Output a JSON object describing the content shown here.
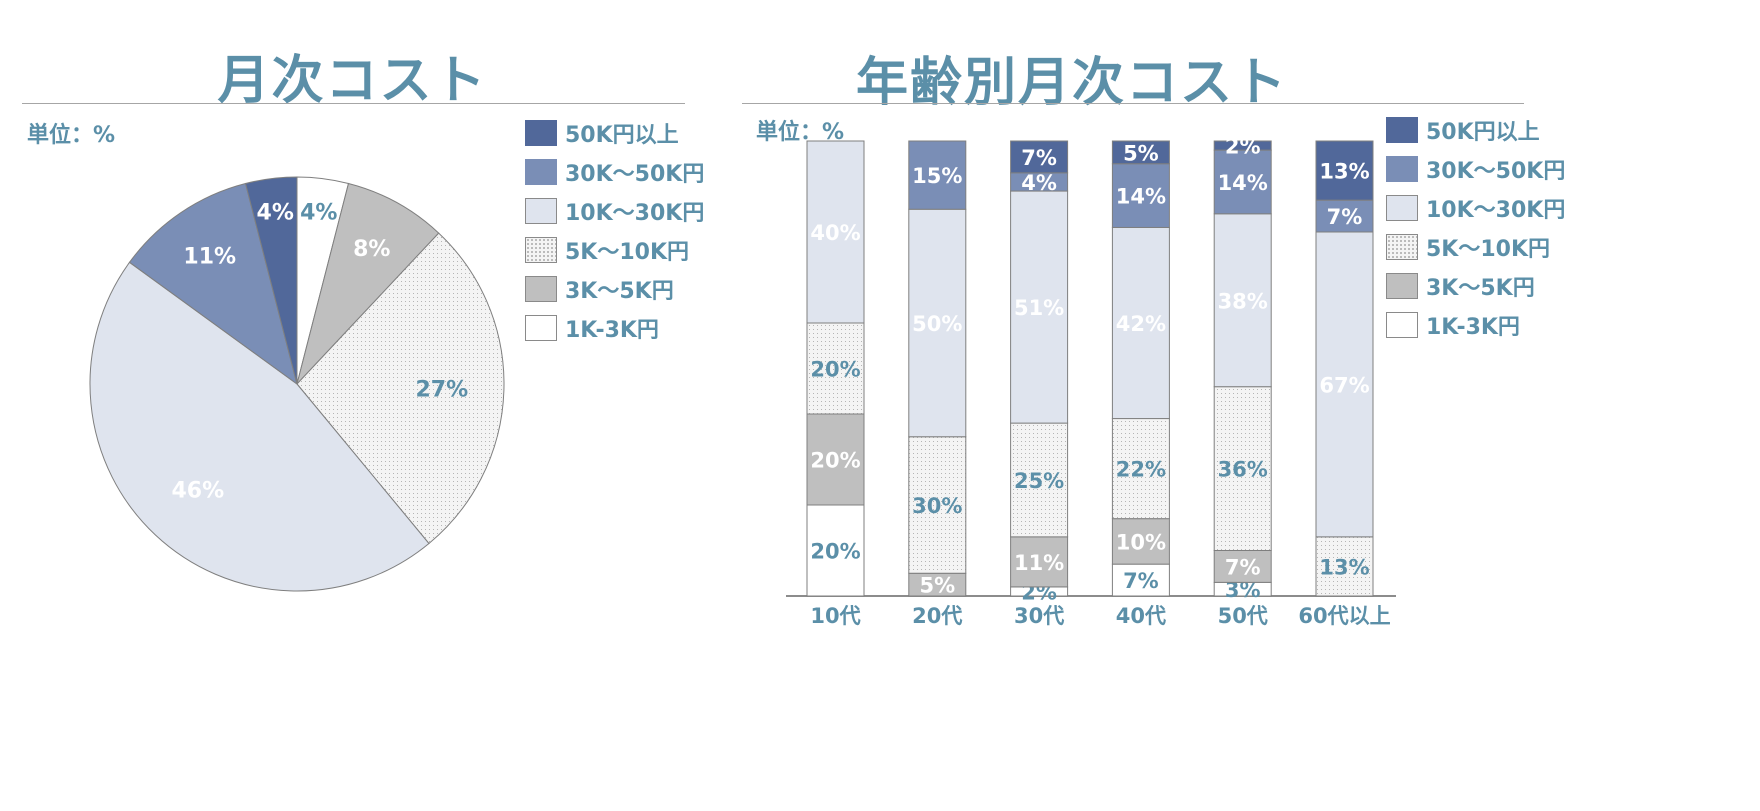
{
  "colors": {
    "title": "#5b8fa8",
    "dark_navy": "#51689a",
    "mid_blue": "#7a8eb6",
    "light_blue": "#dfe4ee",
    "dotted": "#f1f1f1",
    "gray": "#bfbfbf",
    "white": "#ffffff"
  },
  "legend": [
    {
      "label": "50K円以上",
      "fill": "dark_navy"
    },
    {
      "label": "30K〜50K円",
      "fill": "mid_blue"
    },
    {
      "label": "10K〜30K円",
      "fill": "light_blue"
    },
    {
      "label": "5K〜10K円",
      "fill": "dotted"
    },
    {
      "label": "3K〜5K円",
      "fill": "gray"
    },
    {
      "label": "1K-3K円",
      "fill": "white"
    }
  ],
  "chart_data": [
    {
      "type": "pie",
      "title": "月次コスト",
      "unit_label": "単位：%",
      "slices": [
        {
          "category": "1K-3K円",
          "value": 4,
          "label": "4%"
        },
        {
          "category": "3K〜5K円",
          "value": 8,
          "label": "8%"
        },
        {
          "category": "5K〜10K円",
          "value": 27,
          "label": "27%"
        },
        {
          "category": "10K〜30K円",
          "value": 46,
          "label": "46%"
        },
        {
          "category": "30K〜50K円",
          "value": 11,
          "label": "11%"
        },
        {
          "category": "50K円以上",
          "value": 4,
          "label": "4%"
        }
      ]
    },
    {
      "type": "bar",
      "stacked": true,
      "title": "年齢別月次コスト",
      "unit_label": "単位：%",
      "categories": [
        "10代",
        "20代",
        "30代",
        "40代",
        "50代",
        "60代以上"
      ],
      "series": [
        {
          "name": "1K-3K円",
          "values": [
            20,
            0,
            2,
            7,
            3,
            0
          ]
        },
        {
          "name": "3K〜5K円",
          "values": [
            20,
            5,
            11,
            10,
            7,
            0
          ]
        },
        {
          "name": "5K〜10K円",
          "values": [
            20,
            30,
            25,
            22,
            36,
            13
          ]
        },
        {
          "name": "10K〜30K円",
          "values": [
            40,
            50,
            51,
            42,
            38,
            67
          ]
        },
        {
          "name": "30K〜50K円",
          "values": [
            0,
            15,
            4,
            14,
            14,
            7
          ]
        },
        {
          "name": "50K円以上",
          "values": [
            0,
            0,
            7,
            5,
            2,
            13
          ]
        }
      ]
    }
  ]
}
